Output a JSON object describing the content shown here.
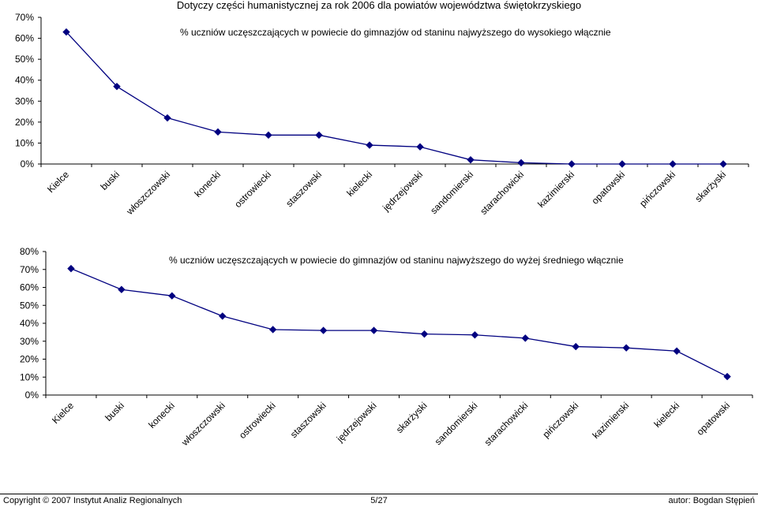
{
  "title": "Dotyczy części humanistycznej za rok 2006 dla powiatów województwa świętokrzyskiego",
  "chart_data": [
    {
      "type": "line",
      "title": "% uczniów uczęszczających w powiecie do gimnazjów od staninu najwyższego do wysokiego włącznie",
      "categories": [
        "Kielce",
        "buski",
        "włoszczowski",
        "konecki",
        "ostrowiecki",
        "staszowski",
        "kielecki",
        "jędrzejowski",
        "sandomierski",
        "starachowicki",
        "kazimierski",
        "opatowski",
        "pińczowski",
        "skarżyski"
      ],
      "values": [
        0.63,
        0.37,
        0.22,
        0.153,
        0.138,
        0.138,
        0.09,
        0.082,
        0.02,
        0.006,
        0,
        0,
        0,
        0
      ],
      "ylim": [
        0,
        0.7
      ],
      "yticks": [
        "0%",
        "10%",
        "20%",
        "30%",
        "40%",
        "50%",
        "60%",
        "70%"
      ],
      "grid": false,
      "line_color": "#000080",
      "marker": "diamond"
    },
    {
      "type": "line",
      "title": "% uczniów uczęszczających w powiecie do gimnazjów od staninu najwyższego do wyżej średniego włącznie",
      "categories": [
        "Kielce",
        "buski",
        "konecki",
        "włoszczowski",
        "ostrowiecki",
        "staszowski",
        "jędrzejowski",
        "skarżyski",
        "sandomierski",
        "starachowicki",
        "pińczowski",
        "kazimierski",
        "kielecki",
        "opatowski"
      ],
      "values": [
        0.705,
        0.588,
        0.553,
        0.44,
        0.365,
        0.36,
        0.36,
        0.34,
        0.335,
        0.317,
        0.27,
        0.263,
        0.245,
        0.103
      ],
      "ylim": [
        0,
        0.8
      ],
      "yticks": [
        "0%",
        "10%",
        "20%",
        "30%",
        "40%",
        "50%",
        "60%",
        "70%",
        "80%"
      ],
      "grid": false,
      "line_color": "#000080",
      "marker": "diamond"
    }
  ],
  "footer": {
    "copyright": "Copyright © 2007 Instytut Analiz Regionalnych",
    "page": "5/27",
    "author": "autor: Bogdan Stępień"
  }
}
